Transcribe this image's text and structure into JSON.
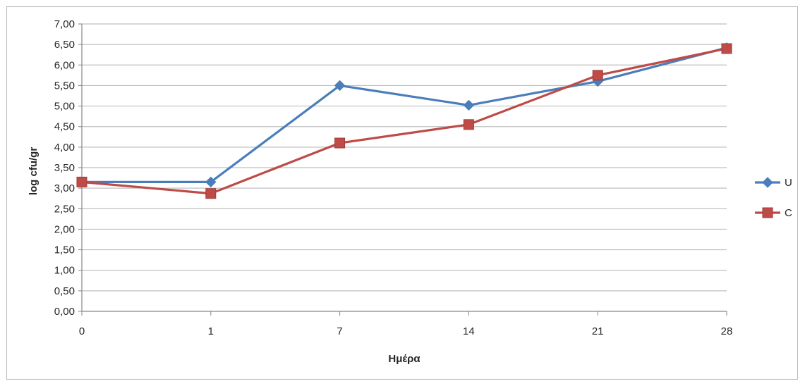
{
  "chart_data": {
    "type": "line",
    "categories": [
      "0",
      "1",
      "7",
      "14",
      "21",
      "28"
    ],
    "xlabel": "Ημέρα",
    "ylabel": "log cfu/gr",
    "ylim": [
      0,
      7
    ],
    "yticks": [
      "0,00",
      "0,50",
      "1,00",
      "1,50",
      "2,00",
      "2,50",
      "3,00",
      "3,50",
      "4,00",
      "4,50",
      "5,00",
      "5,50",
      "6,00",
      "6,50",
      "7,00"
    ],
    "grid": true,
    "legend_position": "right",
    "series": [
      {
        "name": "U",
        "color": "#4a7ebb",
        "marker": "diamond",
        "values": [
          3.15,
          3.15,
          5.5,
          5.02,
          5.6,
          6.42
        ]
      },
      {
        "name": "C",
        "color": "#be4b48",
        "marker": "square",
        "values": [
          3.15,
          2.87,
          4.1,
          4.55,
          5.75,
          6.4
        ]
      }
    ]
  }
}
